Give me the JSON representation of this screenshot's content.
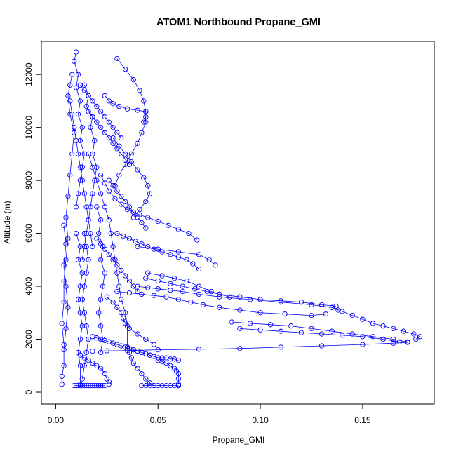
{
  "chart_data": {
    "type": "scatter",
    "title": "ATOM1 Northbound Propane_GMI",
    "xlabel": "Propane_GMI",
    "ylabel": "Altitude (m)",
    "xlim": [
      -0.007,
      0.185
    ],
    "ylim": [
      -450,
      13250
    ],
    "x_ticks": [
      0.0,
      0.05,
      0.1,
      0.15
    ],
    "x_tick_labels": [
      "0.00",
      "0.05",
      "0.10",
      "0.15"
    ],
    "y_ticks": [
      0,
      2000,
      4000,
      6000,
      8000,
      10000,
      12000
    ],
    "y_tick_labels": [
      "0",
      "2000",
      "4000",
      "6000",
      "8000",
      "10000",
      "12000"
    ],
    "marker": "open-circle",
    "color": "#0000ff",
    "grid": false,
    "series": [
      {
        "x": [
          0.01,
          0.009,
          0.011,
          0.01,
          0.012,
          0.011,
          0.013,
          0.012,
          0.014,
          0.013,
          0.012,
          0.011,
          0.01
        ],
        "y": [
          12850,
          12500,
          12000,
          11500,
          11000,
          10500,
          10000,
          9500,
          9000,
          8500,
          8000,
          7500,
          7000
        ]
      },
      {
        "x": [
          0.008,
          0.007,
          0.006,
          0.007,
          0.009,
          0.008,
          0.007,
          0.006,
          0.005,
          0.006,
          0.005,
          0.004,
          0.004,
          0.003,
          0.004
        ],
        "y": [
          12000,
          11600,
          11200,
          10500,
          9800,
          9000,
          8200,
          7400,
          6600,
          5800,
          5000,
          4200,
          3400,
          2600,
          1800
        ]
      },
      {
        "x": [
          0.014,
          0.016,
          0.015,
          0.018,
          0.017,
          0.019,
          0.018,
          0.02,
          0.019,
          0.018,
          0.017,
          0.016,
          0.015,
          0.014,
          0.013
        ],
        "y": [
          11600,
          11200,
          10800,
          10400,
          10000,
          9500,
          9000,
          8500,
          8000,
          7500,
          7000,
          6500,
          6000,
          5500,
          5000
        ]
      },
      {
        "x": [
          0.03,
          0.034,
          0.038,
          0.041,
          0.043,
          0.044,
          0.044,
          0.042,
          0.04,
          0.037,
          0.034,
          0.031,
          0.029
        ],
        "y": [
          12600,
          12200,
          11800,
          11400,
          11000,
          10600,
          10200,
          9800,
          9400,
          9000,
          8600,
          8200,
          7800
        ]
      },
      {
        "x": [
          0.024,
          0.026,
          0.028,
          0.031,
          0.035,
          0.04,
          0.044,
          0.044,
          0.043
        ],
        "y": [
          11200,
          11000,
          10900,
          10800,
          10700,
          10650,
          10600,
          10400,
          10200
        ]
      },
      {
        "x": [
          0.028,
          0.031,
          0.034,
          0.037,
          0.04,
          0.043,
          0.045,
          0.046,
          0.044,
          0.041,
          0.038
        ],
        "y": [
          9600,
          9300,
          9000,
          8700,
          8400,
          8100,
          7800,
          7500,
          7200,
          6900,
          6600
        ]
      },
      {
        "x": [
          0.022,
          0.024,
          0.026,
          0.029,
          0.032,
          0.035,
          0.038,
          0.041,
          0.045,
          0.05,
          0.055,
          0.06,
          0.065,
          0.069
        ],
        "y": [
          8200,
          7900,
          7600,
          7300,
          7100,
          6900,
          6800,
          6700,
          6600,
          6450,
          6300,
          6150,
          6000,
          5750
        ]
      },
      {
        "x": [
          0.03,
          0.033,
          0.036,
          0.039,
          0.042,
          0.045,
          0.048,
          0.052,
          0.056,
          0.06,
          0.064,
          0.067,
          0.07
        ],
        "y": [
          6000,
          5900,
          5800,
          5700,
          5600,
          5500,
          5400,
          5300,
          5200,
          5100,
          5000,
          4850,
          4650
        ]
      },
      {
        "x": [
          0.04,
          0.05,
          0.06,
          0.07,
          0.075,
          0.078
        ],
        "y": [
          5500,
          5400,
          5300,
          5200,
          5000,
          4800
        ]
      },
      {
        "x": [
          0.045,
          0.052,
          0.058,
          0.064,
          0.07,
          0.076,
          0.08,
          0.085
        ],
        "y": [
          4500,
          4400,
          4300,
          4200,
          4000,
          3800,
          3700,
          3600
        ]
      },
      {
        "x": [
          0.044,
          0.05,
          0.056,
          0.062,
          0.068,
          0.074,
          0.08,
          0.09,
          0.1,
          0.11,
          0.12,
          0.13,
          0.137
        ],
        "y": [
          4300,
          4200,
          4100,
          4000,
          3900,
          3800,
          3700,
          3600,
          3500,
          3450,
          3400,
          3300,
          3250
        ]
      },
      {
        "x": [
          0.04,
          0.045,
          0.05,
          0.056,
          0.062,
          0.07,
          0.08,
          0.095,
          0.11,
          0.125,
          0.135,
          0.138
        ],
        "y": [
          4000,
          3950,
          3900,
          3850,
          3800,
          3700,
          3600,
          3500,
          3400,
          3300,
          3200,
          3100
        ]
      },
      {
        "x": [
          0.03,
          0.036,
          0.042,
          0.048,
          0.054,
          0.06,
          0.066,
          0.072,
          0.08,
          0.09,
          0.1,
          0.112,
          0.125,
          0.132
        ],
        "y": [
          3800,
          3750,
          3700,
          3650,
          3600,
          3500,
          3400,
          3300,
          3200,
          3100,
          3000,
          2950,
          2900,
          2950
        ]
      },
      {
        "x": [
          0.135,
          0.14,
          0.145,
          0.15,
          0.155,
          0.16,
          0.165,
          0.17,
          0.175,
          0.178,
          0.176
        ],
        "y": [
          3200,
          3050,
          2900,
          2750,
          2600,
          2500,
          2400,
          2300,
          2200,
          2100,
          2000
        ]
      },
      {
        "x": [
          0.086,
          0.095,
          0.105,
          0.115,
          0.125,
          0.135,
          0.145,
          0.155,
          0.165,
          0.172
        ],
        "y": [
          2650,
          2600,
          2550,
          2500,
          2400,
          2300,
          2200,
          2100,
          2000,
          1900
        ]
      },
      {
        "x": [
          0.09,
          0.1,
          0.11,
          0.12,
          0.13,
          0.14,
          0.15,
          0.16,
          0.168
        ],
        "y": [
          2400,
          2350,
          2300,
          2250,
          2200,
          2150,
          2100,
          2000,
          1900
        ]
      },
      {
        "x": [
          0.018,
          0.025,
          0.035,
          0.05,
          0.07,
          0.09,
          0.11,
          0.13,
          0.15,
          0.165,
          0.172
        ],
        "y": [
          1550,
          1560,
          1570,
          1600,
          1620,
          1650,
          1700,
          1750,
          1800,
          1850,
          1880
        ]
      },
      {
        "x": [
          0.014,
          0.015,
          0.016,
          0.015,
          0.014,
          0.013,
          0.014,
          0.015,
          0.016,
          0.015,
          0.014,
          0.013
        ],
        "y": [
          6000,
          5500,
          5000,
          4500,
          4000,
          3500,
          3000,
          2500,
          2000,
          1500,
          1000,
          500
        ]
      },
      {
        "x": [
          0.02,
          0.022,
          0.021,
          0.023,
          0.022,
          0.024,
          0.023,
          0.022,
          0.021,
          0.022,
          0.023,
          0.022
        ],
        "y": [
          7000,
          6500,
          6000,
          5500,
          5000,
          4500,
          4000,
          3500,
          3000,
          2500,
          2000,
          1500
        ]
      },
      {
        "x": [
          0.016,
          0.018,
          0.02,
          0.022,
          0.024,
          0.026,
          0.027,
          0.028,
          0.029,
          0.03,
          0.031,
          0.032,
          0.034,
          0.035,
          0.035
        ],
        "y": [
          9000,
          8500,
          8000,
          7500,
          7000,
          6500,
          6000,
          5500,
          5000,
          4500,
          4000,
          3500,
          3000,
          2500,
          1700
        ]
      },
      {
        "x": [
          0.01,
          0.012,
          0.011,
          0.013,
          0.012,
          0.011,
          0.012,
          0.013,
          0.012,
          0.011,
          0.012,
          0.012
        ],
        "y": [
          6000,
          5500,
          5000,
          4500,
          4000,
          3500,
          3000,
          2500,
          2000,
          1500,
          1000,
          300
        ]
      },
      {
        "x": [
          0.004,
          0.005,
          0.004,
          0.005,
          0.006,
          0.005,
          0.004,
          0.004,
          0.003,
          0.003
        ],
        "y": [
          6300,
          5600,
          4800,
          4000,
          3200,
          2400,
          1600,
          1000,
          600,
          300
        ]
      },
      {
        "x": [
          0.025,
          0.028,
          0.03,
          0.032,
          0.033,
          0.034,
          0.036,
          0.04,
          0.044,
          0.048
        ],
        "y": [
          3600,
          3400,
          3200,
          3000,
          2800,
          2600,
          2400,
          2200,
          2000,
          1800
        ]
      },
      {
        "x": [
          0.012,
          0.014,
          0.016,
          0.018,
          0.02,
          0.022,
          0.024,
          0.025,
          0.026,
          0.026
        ],
        "y": [
          1400,
          1300,
          1200,
          1100,
          1000,
          900,
          700,
          500,
          400,
          300
        ]
      },
      {
        "x": [
          0.036,
          0.037,
          0.038,
          0.04,
          0.042,
          0.044,
          0.046,
          0.048
        ],
        "y": [
          1500,
          1300,
          1100,
          900,
          700,
          500,
          350,
          250
        ]
      },
      {
        "x": [
          0.042,
          0.044,
          0.046,
          0.048,
          0.05,
          0.052,
          0.054,
          0.056,
          0.058,
          0.06,
          0.06
        ],
        "y": [
          250,
          250,
          250,
          250,
          250,
          250,
          250,
          250,
          250,
          250,
          250
        ]
      },
      {
        "x": [
          0.05,
          0.052,
          0.054,
          0.056,
          0.058,
          0.059,
          0.06,
          0.06,
          0.06
        ],
        "y": [
          1200,
          1150,
          1100,
          1000,
          900,
          800,
          700,
          500,
          300
        ]
      },
      {
        "x": [
          0.009,
          0.01,
          0.011,
          0.012,
          0.013,
          0.014,
          0.015,
          0.016,
          0.017,
          0.018,
          0.019,
          0.02,
          0.021,
          0.022,
          0.023,
          0.024
        ],
        "y": [
          250,
          250,
          250,
          250,
          250,
          250,
          250,
          250,
          250,
          250,
          250,
          250,
          250,
          250,
          250,
          250
        ]
      },
      {
        "x": [
          0.035,
          0.036,
          0.038,
          0.04,
          0.042,
          0.044,
          0.046,
          0.048,
          0.05,
          0.052,
          0.054,
          0.056,
          0.058,
          0.06
        ],
        "y": [
          1700,
          1650,
          1600,
          1550,
          1500,
          1450,
          1400,
          1350,
          1300,
          1300,
          1300,
          1250,
          1250,
          1200
        ]
      },
      {
        "x": [
          0.018,
          0.02,
          0.022,
          0.024,
          0.026,
          0.028,
          0.03,
          0.032,
          0.034,
          0.036,
          0.038,
          0.04,
          0.042,
          0.044,
          0.046,
          0.048,
          0.05
        ],
        "y": [
          2100,
          2050,
          2000,
          1950,
          1900,
          1850,
          1800,
          1750,
          1700,
          1650,
          1600,
          1550,
          1500,
          1450,
          1400,
          1350,
          1300
        ]
      },
      {
        "x": [
          0.016,
          0.018,
          0.02,
          0.022,
          0.024,
          0.026,
          0.028,
          0.03,
          0.032,
          0.034,
          0.036
        ],
        "y": [
          10600,
          10400,
          10200,
          10000,
          9800,
          9600,
          9400,
          9200,
          9000,
          8800,
          8600
        ]
      },
      {
        "x": [
          0.012,
          0.014,
          0.016,
          0.018,
          0.02,
          0.022,
          0.024,
          0.026,
          0.028,
          0.03,
          0.032
        ],
        "y": [
          11600,
          11400,
          11200,
          11000,
          10800,
          10600,
          10400,
          10200,
          10000,
          9800,
          9600
        ]
      },
      {
        "x": [
          0.007,
          0.008,
          0.009,
          0.01,
          0.011,
          0.012,
          0.013,
          0.014,
          0.015,
          0.016,
          0.017,
          0.018
        ],
        "y": [
          11000,
          10500,
          10000,
          9500,
          9000,
          8500,
          8000,
          7500,
          7000,
          6500,
          6000,
          5500
        ]
      },
      {
        "x": [
          0.026,
          0.028,
          0.03,
          0.032,
          0.034,
          0.036,
          0.038,
          0.04,
          0.042,
          0.044
        ],
        "y": [
          8000,
          7800,
          7600,
          7400,
          7200,
          7000,
          6800,
          6600,
          6400,
          6200
        ]
      },
      {
        "x": [
          0.02,
          0.022,
          0.024,
          0.026,
          0.028,
          0.03,
          0.032,
          0.034,
          0.036,
          0.038,
          0.04
        ],
        "y": [
          5800,
          5600,
          5400,
          5200,
          5000,
          4800,
          4600,
          4400,
          4200,
          4000,
          3800
        ]
      }
    ]
  }
}
